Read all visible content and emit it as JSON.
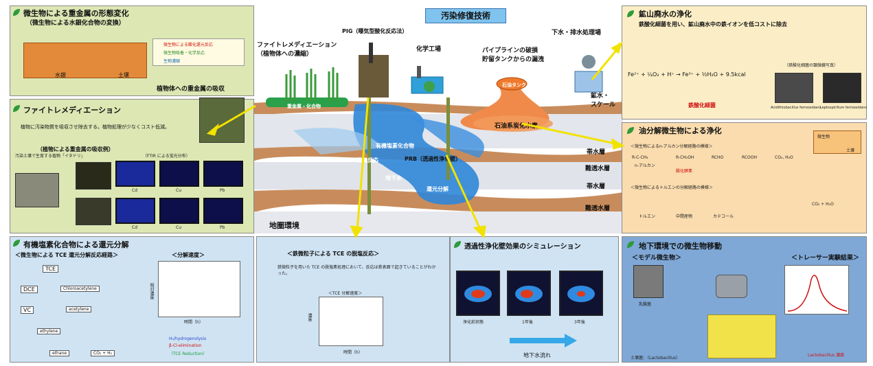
{
  "title": "汚染修復技術",
  "top_left": {
    "title": "微生物による重金属の形態変化",
    "subtitle": "（微生物による水銀化合物の変換）",
    "legend": [
      "微生物による酸化還元反応",
      "微生物吸着・化学反応",
      "生物濃縮"
    ],
    "bottom_labels": [
      "水銀",
      "土壌"
    ]
  },
  "phyto": {
    "title": "ファイトレメディエーション",
    "plant_label": "植物体への重金属の吸収",
    "desc": "植物に汚染物質を吸収させ除去する。植物処理が少なくコスト低減。",
    "sub": "（植物による重金属の吸収例）",
    "photo_caption": "汚染土壌で生育する植物「イタドリ」",
    "imaging_caption": "（FTIR による蛍光分布）",
    "tile_labels": [
      "Cd",
      "Cu",
      "Pb"
    ]
  },
  "center": {
    "phyto_label": "ファイトレメディエーション\n（植物体への濃縮）",
    "pig_label": "PIG（曝気型酸化反応法）",
    "chem_label": "化学工場",
    "pipe_label": "パイプラインの破損\n貯留タンクからの漏洩",
    "sewage_label": "下水・排水処理場",
    "mine_label": "鉱水・\nスケール",
    "tank_label": "石油タンク",
    "oil_label": "石油系炭化水素",
    "heavy_label": "重金属・化合物",
    "organic_label": "有機塩素化合物",
    "reduction_label": "還元反応",
    "prb_label": "PRB（透過性浄化壁）",
    "groundwater_label": "地下水",
    "reduction2_label": "還元分解",
    "layers": [
      "帯水層",
      "難透水層",
      "帯水層",
      "難透水層"
    ],
    "env_label": "地圏環境"
  },
  "mine": {
    "title": "鉱山廃水の浄化",
    "desc": "鉄酸化細菌を用い、鉱山廃水中の鉄イオンを低コストに除去",
    "eq": "Fe²⁺ + ¼O₂ + H⁺ → Fe³⁺ + ½H₂O + 9.5kcal",
    "eq_note": "鉄酸化細菌",
    "micro_caption": "（鉄酸化細菌の顕微鏡写真）",
    "species": [
      "Acidithiobacillus ferrooxidans",
      "Leptospirillum ferrooxidans"
    ]
  },
  "oil": {
    "title": "油分解微生物による浄化",
    "item1": "＜微生物によるn-アルカン分解経路の模様＞",
    "item2": "＜微生物によるトルエンの分解経路の模様＞",
    "chain1": [
      "R-C-CH₃",
      "R-CH₂OH",
      "RCHO",
      "RCOOH",
      "CO₂, H₂O"
    ],
    "notes1": [
      "n-アルカン",
      "酸化酵素"
    ],
    "chain2": [
      "トルエン",
      "中間産物",
      "カテコール",
      "CO₂ + H₂O"
    ],
    "inset": [
      "微生物",
      "土壌"
    ]
  },
  "chlorinated": {
    "title": "有機塩素化合物による還元分解",
    "sub": "＜微生物による TCE 還元分解反応経路＞",
    "nodes": [
      "TCE",
      "DCE",
      "Chloroacetylene",
      "VC",
      "acetylene",
      "ethylene",
      "ethane",
      "CO₂ + H₂"
    ],
    "graph_title": "＜分解速度＞",
    "graph_ylabel": "相対濃度",
    "graph_xlabel": "時間（h）",
    "legend": [
      "H₂/hydrogenolysis",
      "β-Cl-elimination",
      "（TCE Reduction）"
    ]
  },
  "adsorption": {
    "title": "＜鉄微粒子による TCE の脱塩反応＞",
    "desc": "鉄微粒子を用いた TCE の脱塩素処理において、反応は鉄表面で起きていることがわかった。",
    "graph_title": "＜TCE 分解速度＞",
    "xlabel": "時間（h）",
    "ylabel": "濃度"
  },
  "sim": {
    "title": "透過性浄化壁効果のシミュレーション",
    "labels": [
      "浄化前状態",
      "1年後",
      "3年後"
    ],
    "arrow_label": "地下水流れ"
  },
  "tracer": {
    "title": "地下環境での微生物移動",
    "model_label": "＜モデル微生物＞",
    "tracer_label": "＜トレーサー実験結果＞",
    "bacterium": "乳酸菌",
    "bottom_label": "土壌菌：（Lactobacillus）",
    "result_legend": "Lactobacillus 濃度"
  },
  "colors": {
    "green_panel": "#dce7b4",
    "blue_panel": "#cfe3f3",
    "orange_panel": "#fbdcae",
    "soil": "#c88c5c",
    "water": "#2f86d8",
    "arrow": "#f2e200"
  }
}
